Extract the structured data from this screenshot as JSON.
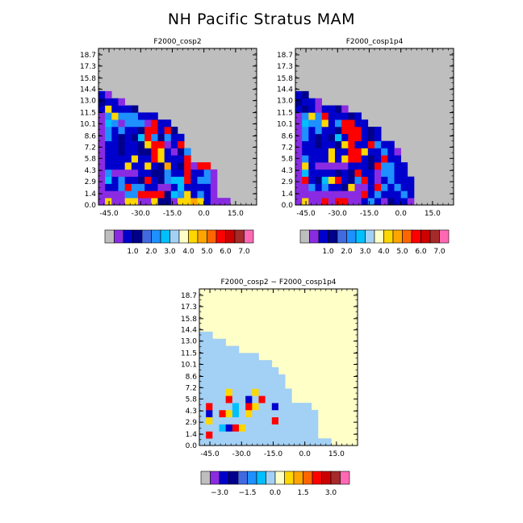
{
  "title": "NH Pacific Stratus MAM",
  "x_ticks": [
    "-45.0",
    "-30.0",
    "-15.0",
    "0.0",
    "15.0"
  ],
  "y_ticks": [
    "0.0",
    "1.4",
    "2.9",
    "4.3",
    "5.8",
    "7.2",
    "8.6",
    "10.1",
    "11.5",
    "13.0",
    "14.4",
    "15.8",
    "17.3",
    "18.7"
  ],
  "colors": {
    "gray": "#bebebe",
    "purple": "#8a2be2",
    "dblue": "#0000cd",
    "navy": "#00008b",
    "royal": "#4169e1",
    "cobalt": "#1e90ff",
    "sky": "#00bfff",
    "pale": "#a3d0f5",
    "cream": "#ffffc8",
    "yellow": "#ffd700",
    "orange": "#ffa500",
    "dorange": "#ff6600",
    "red": "#ff0000",
    "dred": "#cd0000",
    "brown": "#a52a2a",
    "pink": "#ff69b4"
  },
  "panels": [
    {
      "subtitle": "F2000_cosp2",
      "colorbar_labels": [
        "1.0",
        "2.0",
        "3.0",
        "4.0",
        "5.0",
        "6.0",
        "7.0"
      ],
      "rows": [
        "PYPPYYPPYNNPYYOYDPPPGGGG",
        "PPPPCCRRRRNSCYDCDPGGGGGG",
        "PDDCRCCDDPPDSDDDDPGGGGGG",
        "PSDCDDNRDNCSSRDCCPGGGGGG",
        "PCPPPPDDNNCDDRDDCPGGGGGG",
        "PDDDYDDYDNODNRPRRGGGGGGG",
        "PDDDDYDDRYDDDRGGGGGGGGGG",
        "PDDNDDNNRYDPNCGGGGGGGGGG",
        "PDDNDDNYRRPDRGGGGGGGGGGG",
        "PCDNDNSRCNCDDGGGGGGGGGGG",
        "PCDCDDNRRDRNGGGGGGGGGGGG",
        "PSCPCCCPRDDGGGGGGGGGGGGG",
        "PCYCCCDDDGGGGGGGGGGGGGGG",
        "DYDDDNGGGGGGGGGGGGGGGGGG",
        "NDDPGGGGGGGGGGGGGGGGGGGG",
        "DPGGGGGGGGGGGGGGGGGGGGGG",
        "GGGGGGGGGGGGGGGGGGGGGGGG",
        "GGGGGGGGGGGGGGGGGGGGGGGG",
        "GGGGGGGGGGGGGGGGGGGGGGGG",
        "GGGGGGGGGGGGGGGGGGGGGGGG",
        "GGGGGGGGGGGGGGGGGGGGGGGG",
        "GGGGGGGGGGGGGGGGGGGGGGGG"
      ]
    },
    {
      "subtitle": "F2000_cosp1p4",
      "colorbar_labels": [
        "1.0",
        "2.0",
        "3.0",
        "4.0",
        "5.0",
        "6.0",
        "7.0"
      ],
      "rows": [
        "PYPPRPRRPPDCDPNDDPGGGGGG",
        "PPPPPPPPPPRDCDDDCDGGGGGG",
        "PPCDCDDNYPPDRCDCDDGGGGGG",
        "PRDNSYRDNCRDPDCDDDGGGGGG",
        "PSDDDDNDNRDDPCCDDGGGGGGG",
        "PYDPPPPPDDDNRCCDDGGGGGGG",
        "PCDDDYDYRRDNDRDDGGGGGGGG",
        "PDDDDYDDRRYDDCDPGGGGGGGG",
        "PDDNDDNYRDDRCDDGGGGGGGGG",
        "PCDNDNSDRRDNDGGGGGGGGGGG",
        "PCDCDDNRRRDNDGGGGGGGGGGG",
        "PSCCYDCRRDDGGGGGGGGGGGGG",
        "PCYCRDDDNDGGGGGGGGGGGGGG",
        "DNDPDDNPGGGGGGGGGGGGGGGG",
        "NDDPGGGGGGGGGGGGGGGGGGGG",
        "DNGGGGGGGGGGGGGGGGGGGGGG",
        "GGGGGGGGGGGGGGGGGGGGGGGG",
        "GGGGGGGGGGGGGGGGGGGGGGGG",
        "GGGGGGGGGGGGGGGGGGGGGGGG",
        "GGGGGGGGGGGGGGGGGGGGGGGG",
        "GGGGGGGGGGGGGGGGGGGGGGGG",
        "GGGGGGGGGGGGGGGGGGGGGGGG"
      ]
    },
    {
      "subtitle": "F2000_cosp2 − F2000_cosp1p4",
      "colorbar_labels": [
        "−3.0",
        "−1.5",
        "0.0",
        "1.5",
        "3.0"
      ],
      "rows": [
        "PPPPPPPPPPPPPPPPPPPPPPPP",
        "PRPPPPPPPPPPPPPPPPPPPPPP",
        "PPPCDRYPPPPPPPPPPPPPPPPP",
        "PYPPPPPPPPPRPPPPPPPPPPPP",
        "PDSRYCPYPPPPPPPPPPPPPPPP",
        "PRPPPCPRYPPDPPPPPPPPPPPP",
        "PPPPRPPDPRPPPPPPPPPPPPPP",
        "PPPPYPPPYPPPPPPPPPPPPPPP",
        "PPPPPPPPPPPPPPPPPPPPPPPP",
        "PPPPPPPPPPPPPPPPPPPPPPPP",
        "PPPPPPPPPPPPPPPPPPPPPPPP",
        "PPPPPPPPPPPPPPPPPPPPPPPP",
        "PPPPPPPPPPPPPPPPPPPPPPPP",
        "PPPPPPPPPPPPPPPPPPPPPPPP",
        "PPPPPPPPPPPPPPPPPPPPPPPP",
        "PPPPPPPPPPPPPPPPPPPPPPPP",
        "PPPPPPPPPPPPPPPPPPPPPPPP",
        "PPPPPPPPPPPPPPPPPPPPPPPP",
        "PPPPPPPPPPPPPPPPPPPPPPPP",
        "PPPPPPPPPPPPPPPPPPPPPPPP",
        "PPPPPPPPPPPPPPPPPPPPPPPP",
        "PPPPPPPPPPPPPPPPPPPPPPPP"
      ]
    }
  ],
  "chart_data": [
    {
      "type": "heatmap",
      "title": "F2000_cosp2",
      "x_ticks": [
        -45.0,
        -30.0,
        -15.0,
        0.0,
        15.0
      ],
      "y_ticks": [
        0.0,
        1.4,
        2.9,
        4.3,
        5.8,
        7.2,
        8.6,
        10.1,
        11.5,
        13.0,
        14.4,
        15.8,
        17.3,
        18.7
      ],
      "xlim": [
        -50,
        25
      ],
      "ylim": [
        0.0,
        19.5
      ],
      "colorbar": [
        "gray",
        "purple",
        "dblue",
        "navy",
        "royal",
        "cobalt",
        "sky",
        "pale",
        "cream",
        "yellow",
        "orange",
        "dorange",
        "red",
        "dred",
        "brown",
        "pink"
      ],
      "colorbar_ticks": [
        1.0,
        2.0,
        3.0,
        4.0,
        5.0,
        6.0,
        7.0
      ],
      "grid_rows_top_to_bottom_code_map": {
        "G": "gray",
        "P": "purple",
        "D": "dblue",
        "N": "navy",
        "C": "cobalt",
        "S": "sky",
        "Y": "yellow",
        "O": "orange",
        "R": "red"
      }
    },
    {
      "type": "heatmap",
      "title": "F2000_cosp1p4",
      "x_ticks": [
        -45.0,
        -30.0,
        -15.0,
        0.0,
        15.0
      ],
      "y_ticks": [
        0.0,
        1.4,
        2.9,
        4.3,
        5.8,
        7.2,
        8.6,
        10.1,
        11.5,
        13.0,
        14.4,
        15.8,
        17.3,
        18.7
      ],
      "xlim": [
        -50,
        25
      ],
      "ylim": [
        0.0,
        19.5
      ],
      "colorbar_ticks": [
        1.0,
        2.0,
        3.0,
        4.0,
        5.0,
        6.0,
        7.0
      ]
    },
    {
      "type": "heatmap",
      "title": "F2000_cosp2 − F2000_cosp1p4",
      "x_ticks": [
        -45.0,
        -30.0,
        -15.0,
        0.0,
        15.0
      ],
      "y_ticks": [
        0.0,
        1.4,
        2.9,
        4.3,
        5.8,
        7.2,
        8.6,
        10.1,
        11.5,
        13.0,
        14.4,
        15.8,
        17.3,
        18.7
      ],
      "xlim": [
        -50,
        25
      ],
      "ylim": [
        0.0,
        19.5
      ],
      "colorbar_ticks": [
        -3.0,
        -1.5,
        0.0,
        1.5,
        3.0
      ]
    }
  ]
}
